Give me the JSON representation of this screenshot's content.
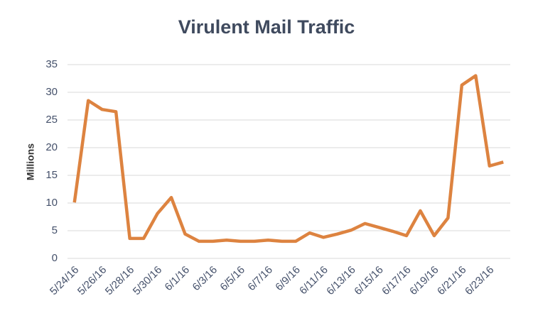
{
  "chart_data": {
    "type": "line",
    "title": "Virulent Mail Traffic",
    "y_label": "Millions",
    "categories": [
      "5/24/16",
      null,
      "5/26/16",
      null,
      "5/28/16",
      null,
      "5/30/16",
      null,
      "6/1/16",
      null,
      "6/3/16",
      null,
      "6/5/16",
      null,
      "6/7/16",
      null,
      "6/9/16",
      null,
      "6/11/16",
      null,
      "6/13/16",
      null,
      "6/15/16",
      null,
      "6/17/16",
      null,
      "6/19/16",
      null,
      "6/21/16",
      null,
      "6/23/16",
      null
    ],
    "series": [
      {
        "name": "Virulent Mail Traffic",
        "color": "#dd8340",
        "values": [
          10.1,
          28.5,
          26.9,
          26.5,
          3.6,
          3.6,
          8.1,
          11,
          4.4,
          3.1,
          3.1,
          3.3,
          3.1,
          3.1,
          3.3,
          3.1,
          3.1,
          4.6,
          3.8,
          4.4,
          5.1,
          6.3,
          5.6,
          4.9,
          4.1,
          8.6,
          4.1,
          7.3,
          31.3,
          33,
          16.7,
          17.4
        ]
      }
    ],
    "ylim": [
      0,
      35
    ],
    "yticks": [
      0,
      5,
      10,
      15,
      20,
      25,
      30,
      35
    ],
    "grid": true
  }
}
